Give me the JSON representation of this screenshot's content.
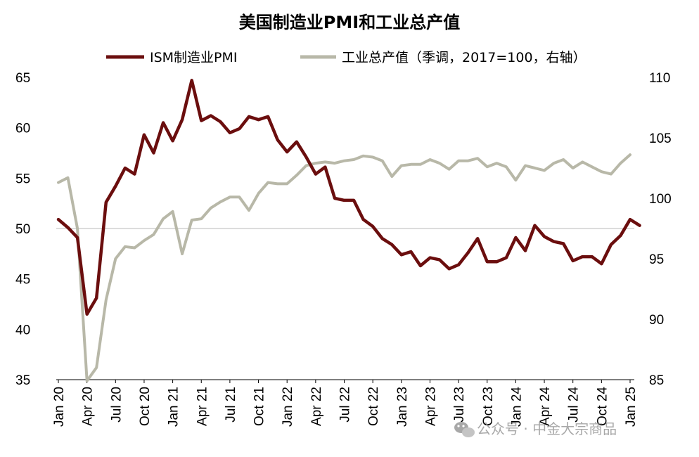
{
  "chart_data": {
    "type": "line",
    "title": "美国制造业PMI和工业总产值",
    "x_labels": [
      "Jan 20",
      "Apr 20",
      "Jul 20",
      "Oct 20",
      "Jan 21",
      "Apr 21",
      "Jul 21",
      "Oct 21",
      "Jan 22",
      "Apr 22",
      "Jul 22",
      "Oct 22",
      "Jan 23",
      "Apr 23",
      "Jul 23",
      "Oct 23",
      "Jan 24",
      "Apr 24",
      "Jul 24",
      "Oct 24",
      "Jan 25"
    ],
    "y_left": {
      "min": 35,
      "max": 65,
      "ticks": [
        35,
        40,
        45,
        50,
        55,
        60,
        65
      ]
    },
    "y_right": {
      "min": 85,
      "max": 110,
      "ticks": [
        85,
        90,
        95,
        100,
        105,
        110
      ]
    },
    "reference_line": 50,
    "colors": {
      "pmi": "#6b0e0e",
      "ip": "#b8b8a8",
      "ref": "#d0d0d0"
    },
    "series": [
      {
        "name": "ISM制造业PMI",
        "axis": "left",
        "values": [
          50.9,
          50.1,
          49.1,
          41.5,
          43.1,
          52.6,
          54.2,
          56.0,
          55.4,
          59.3,
          57.5,
          60.5,
          58.7,
          60.8,
          64.7,
          60.7,
          61.2,
          60.6,
          59.5,
          59.9,
          61.1,
          60.8,
          61.1,
          58.8,
          57.6,
          58.6,
          57.1,
          55.4,
          56.1,
          53.0,
          52.8,
          52.8,
          50.9,
          50.2,
          49.0,
          48.4,
          47.4,
          47.7,
          46.3,
          47.1,
          46.9,
          46.0,
          46.4,
          47.6,
          49.0,
          46.7,
          46.7,
          47.1,
          49.1,
          47.8,
          50.3,
          49.2,
          48.7,
          48.5,
          46.8,
          47.2,
          47.2,
          46.5,
          48.4,
          49.3,
          50.9,
          50.3
        ]
      },
      {
        "name": "工业总产值（季调，2017=100，右轴）",
        "axis": "right",
        "values": [
          101.3,
          101.7,
          97.5,
          84.9,
          86.0,
          91.6,
          95.0,
          96.0,
          95.9,
          96.5,
          97.0,
          98.3,
          98.9,
          95.4,
          98.2,
          98.3,
          99.2,
          99.7,
          100.1,
          100.1,
          99.0,
          100.4,
          101.3,
          101.2,
          101.2,
          101.9,
          102.7,
          102.9,
          103.0,
          102.9,
          103.1,
          103.2,
          103.5,
          103.4,
          103.1,
          101.8,
          102.7,
          102.8,
          102.8,
          103.2,
          102.9,
          102.4,
          103.1,
          103.1,
          103.3,
          102.6,
          102.9,
          102.6,
          101.5,
          102.7,
          102.5,
          102.3,
          102.9,
          103.2,
          102.5,
          103.0,
          102.6,
          102.2,
          102.0,
          102.9,
          103.6
        ]
      }
    ]
  },
  "legend": {
    "pmi_label": "ISM制造业PMI",
    "ip_label": "工业总产值（季调，2017=100，右轴）"
  },
  "watermark": {
    "icon": "wechat-icon",
    "text": "公众号 · 中金大宗商品"
  }
}
